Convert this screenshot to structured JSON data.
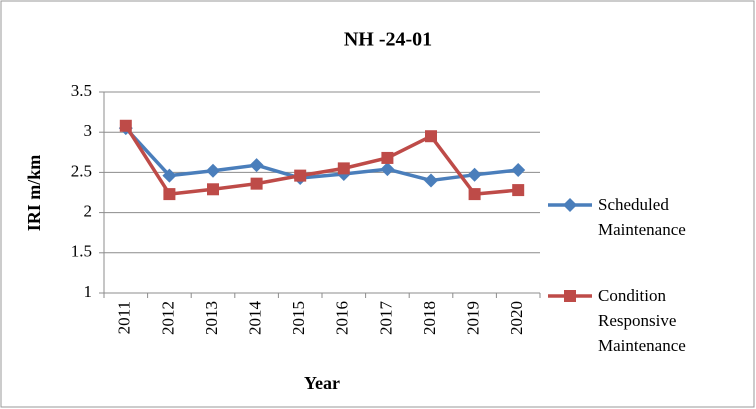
{
  "chart_data": {
    "type": "line",
    "title": "NH -24-01",
    "x_label": "Year",
    "y_label": "IRI m/km",
    "categories": [
      "2011",
      "2012",
      "2013",
      "2014",
      "2015",
      "2016",
      "2017",
      "2018",
      "2019",
      "2020"
    ],
    "series": [
      {
        "name": "Scheduled Maintenance",
        "color": "#4a7ebb",
        "marker": "diamond",
        "values": [
          3.05,
          2.46,
          2.52,
          2.59,
          2.43,
          2.48,
          2.54,
          2.4,
          2.47,
          2.53
        ]
      },
      {
        "name": "Condition Responsive Maintenance",
        "color": "#be4b48",
        "marker": "square",
        "values": [
          3.08,
          2.23,
          2.29,
          2.36,
          2.46,
          2.55,
          2.68,
          2.95,
          2.23,
          2.28
        ]
      }
    ],
    "ylim": [
      1,
      3.5
    ],
    "yticks": [
      1,
      1.5,
      2,
      2.5,
      3,
      3.5
    ],
    "grid": true,
    "legend": "right"
  }
}
